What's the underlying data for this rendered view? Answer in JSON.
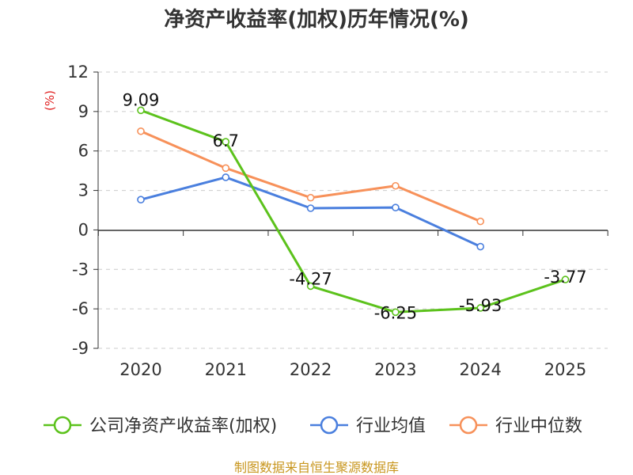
{
  "chart_data": {
    "type": "line",
    "title": "净资产收益率(加权)历年情况(%)",
    "ylabel": "(%)",
    "xlabel": "",
    "categories": [
      "2020",
      "2021",
      "2022",
      "2023",
      "2024",
      "2025"
    ],
    "ylim": [
      -9,
      12
    ],
    "yticks": [
      12,
      9,
      6,
      3,
      0,
      -3,
      -6,
      -9
    ],
    "grid": "horizontal dashed",
    "legend_position": "bottom",
    "series": [
      {
        "name": "公司净资产收益率(加权)",
        "color": "#5cc21c",
        "values": [
          9.09,
          6.7,
          -4.27,
          -6.25,
          -5.93,
          -3.77
        ],
        "data_labels": [
          "9.09",
          "6.7",
          "-4.27",
          "-6.25",
          "-5.93",
          "-3.77"
        ]
      },
      {
        "name": "行业均值",
        "color": "#4a7fde",
        "values": [
          2.3,
          4.0,
          1.65,
          1.7,
          -1.27,
          null
        ]
      },
      {
        "name": "行业中位数",
        "color": "#f7915a",
        "values": [
          7.5,
          4.7,
          2.45,
          3.35,
          0.65,
          null
        ]
      }
    ],
    "source": "制图数据来自恒生聚源数据库"
  }
}
